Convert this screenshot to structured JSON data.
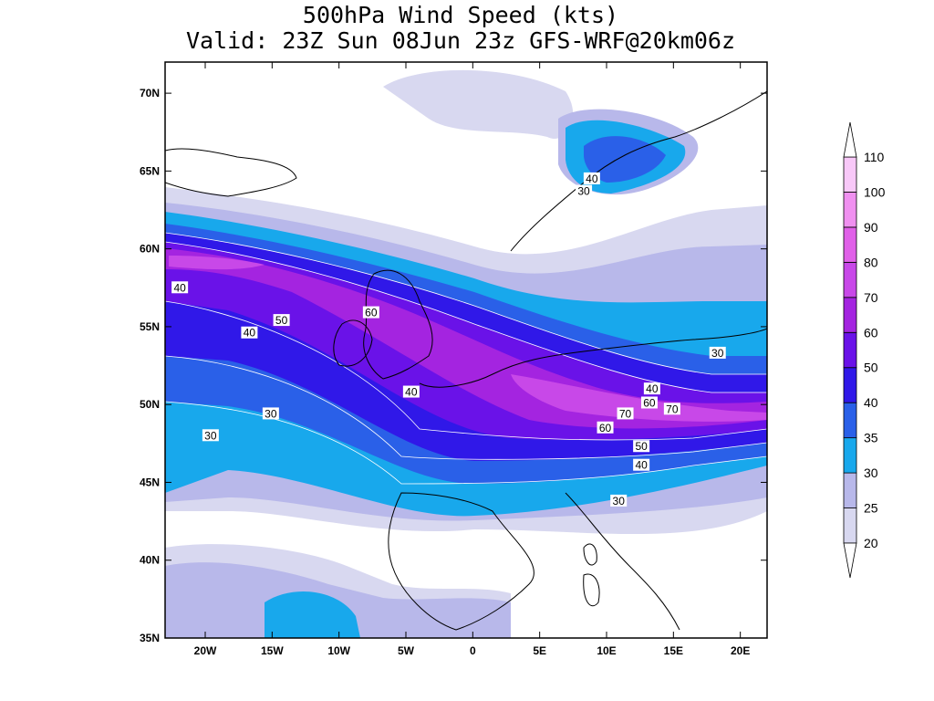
{
  "title": {
    "line1": "500hPa Wind Speed (kts)",
    "line2": "Valid: 23Z Sun 08Jun 23z GFS-WRF@20km06z"
  },
  "map": {
    "projection": "lat-lon",
    "lon_range": [
      -23,
      22
    ],
    "lat_range": [
      35,
      72
    ],
    "lon_ticks": [
      {
        "value": -20,
        "label": "20W"
      },
      {
        "value": -15,
        "label": "15W"
      },
      {
        "value": -10,
        "label": "10W"
      },
      {
        "value": -5,
        "label": "5W"
      },
      {
        "value": 0,
        "label": "0"
      },
      {
        "value": 5,
        "label": "5E"
      },
      {
        "value": 10,
        "label": "10E"
      },
      {
        "value": 15,
        "label": "15E"
      },
      {
        "value": 20,
        "label": "20E"
      }
    ],
    "lat_ticks": [
      {
        "value": 35,
        "label": "35N"
      },
      {
        "value": 40,
        "label": "40N"
      },
      {
        "value": 45,
        "label": "45N"
      },
      {
        "value": 50,
        "label": "50N"
      },
      {
        "value": 55,
        "label": "55N"
      },
      {
        "value": 60,
        "label": "60N"
      },
      {
        "value": 65,
        "label": "65N"
      },
      {
        "value": 70,
        "label": "70N"
      }
    ],
    "contour_labels": [
      {
        "text": "40",
        "lon": 8.9,
        "lat": 64.5
      },
      {
        "text": "30",
        "lon": 8.3,
        "lat": 63.7
      },
      {
        "text": "40",
        "lon": -21.9,
        "lat": 57.5
      },
      {
        "text": "50",
        "lon": -14.3,
        "lat": 55.4
      },
      {
        "text": "40",
        "lon": -16.7,
        "lat": 54.6
      },
      {
        "text": "60",
        "lon": -7.6,
        "lat": 55.9
      },
      {
        "text": "40",
        "lon": -4.6,
        "lat": 50.8
      },
      {
        "text": "30",
        "lon": -15.1,
        "lat": 49.4
      },
      {
        "text": "30",
        "lon": -19.6,
        "lat": 48.0
      },
      {
        "text": "30",
        "lon": 18.3,
        "lat": 53.3
      },
      {
        "text": "40",
        "lon": 13.4,
        "lat": 51.0
      },
      {
        "text": "60",
        "lon": 13.2,
        "lat": 50.1
      },
      {
        "text": "70",
        "lon": 14.9,
        "lat": 49.7
      },
      {
        "text": "70",
        "lon": 11.4,
        "lat": 49.4
      },
      {
        "text": "60",
        "lon": 9.9,
        "lat": 48.5
      },
      {
        "text": "50",
        "lon": 12.6,
        "lat": 47.3
      },
      {
        "text": "40",
        "lon": 12.6,
        "lat": 46.1
      },
      {
        "text": "30",
        "lon": 10.9,
        "lat": 43.8
      }
    ]
  },
  "colorbar": {
    "levels": [
      20,
      25,
      30,
      35,
      40,
      50,
      60,
      70,
      80,
      90,
      100,
      110
    ],
    "labels": [
      "20",
      "25",
      "30",
      "35",
      "40",
      "50",
      "60",
      "70",
      "80",
      "90",
      "100",
      "110"
    ],
    "colors": [
      "#d8d8f0",
      "#b8b8ea",
      "#18a8ec",
      "#2a60e8",
      "#3018e8",
      "#6a12e8",
      "#a424e0",
      "#c848e8",
      "#e060e8",
      "#f090f0",
      "#f8c8f8"
    ]
  },
  "jet_core_max": {
    "value": 70,
    "unit": "kts",
    "region": "central Europe"
  }
}
